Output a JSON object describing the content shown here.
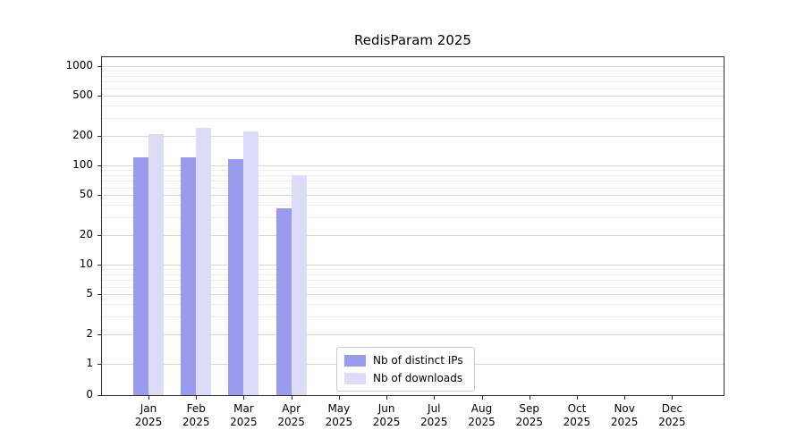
{
  "title": "RedisParam 2025",
  "chart_data": {
    "type": "bar",
    "title": "RedisParam 2025",
    "categories": [
      "Jan",
      "Feb",
      "Mar",
      "Apr",
      "May",
      "Jun",
      "Jul",
      "Aug",
      "Sep",
      "Oct",
      "Nov",
      "Dec"
    ],
    "year": "2025",
    "series": [
      {
        "name": "Nb of distinct IPs",
        "color": "#9b9bee",
        "values": [
          120,
          120,
          115,
          37,
          0,
          0,
          0,
          0,
          0,
          0,
          0,
          0
        ]
      },
      {
        "name": "Nb of downloads",
        "color": "#dcdcf8",
        "values": [
          205,
          240,
          222,
          80,
          0,
          0,
          0,
          0,
          0,
          0,
          0,
          0
        ]
      }
    ],
    "yscale": "symlog",
    "yticks": [
      0,
      1,
      2,
      5,
      10,
      20,
      50,
      100,
      200,
      500,
      1000
    ],
    "ylim": [
      0,
      1000
    ],
    "xlabel": "",
    "ylabel": "",
    "grid": "horizontal-major-and-minor",
    "legend_position": "inside-bottom-center"
  },
  "colors": {
    "background": "#ffffff",
    "grid_major": "#d6d6d6",
    "grid_minor": "#ececec",
    "axis": "#2b2b2b",
    "text": "#000000",
    "legend_border": "#cccccc"
  }
}
